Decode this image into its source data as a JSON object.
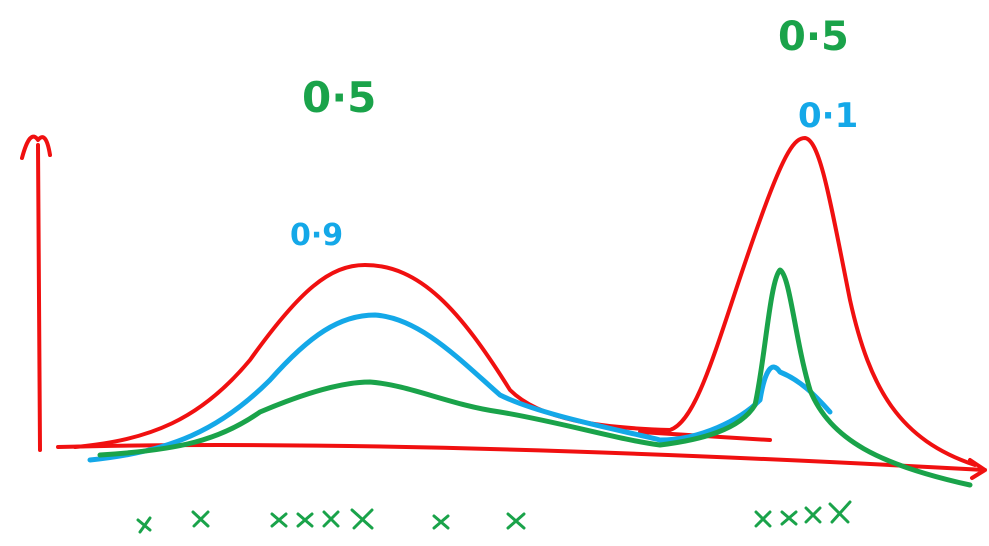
{
  "labels": [
    "0·5",
    "0·9",
    "0·5",
    "0·1"
  ]
}
